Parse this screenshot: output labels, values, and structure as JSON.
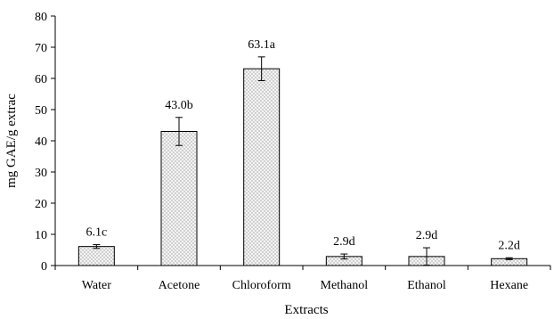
{
  "chart_data": {
    "type": "bar",
    "title": "",
    "xlabel": "Extracts",
    "ylabel": "mg GAE/g extrac",
    "ylim": [
      0,
      80
    ],
    "yticks": [
      0,
      10,
      20,
      30,
      40,
      50,
      60,
      70,
      80
    ],
    "grid": false,
    "legend": "none",
    "categories": [
      "Water",
      "Acetone",
      "Chloroform",
      "Methanol",
      "Ethanol",
      "Hexane"
    ],
    "values": [
      6.1,
      43.0,
      63.1,
      2.9,
      2.9,
      2.2
    ],
    "errors": [
      0.6,
      4.5,
      3.8,
      0.8,
      2.8,
      0.3
    ],
    "data_labels": [
      "6.1c",
      "43.0b",
      "63.1a",
      "2.9d",
      "2.9d",
      "2.2d"
    ],
    "bar_fill": "#e6e6e6",
    "bar_stroke": "#000000"
  }
}
